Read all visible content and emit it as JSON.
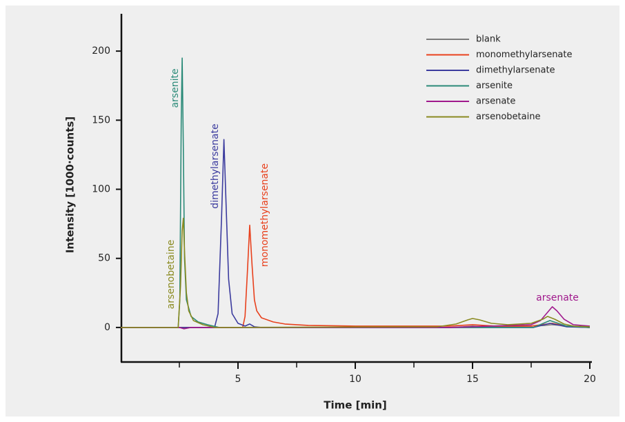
{
  "chart_data": {
    "type": "line",
    "xlabel": "Time [min]",
    "ylabel": "Intensity [1000·counts]",
    "xlim": [
      0,
      20
    ],
    "ylim": [
      -25,
      227
    ],
    "xticks": [
      5,
      10,
      15,
      20
    ],
    "xminorticks": [
      2.5,
      7.5,
      12.5,
      17.5
    ],
    "yticks": [
      0,
      50,
      100,
      150,
      200
    ],
    "legend": "upper right",
    "series": [
      {
        "name": "blank",
        "color": "#7a7a7a",
        "x": [
          0,
          14,
          14.6,
          15,
          15.4,
          16,
          17.5,
          18.1,
          18.4,
          18.8,
          19.3,
          20
        ],
        "values": [
          0,
          0,
          0.5,
          1,
          0.5,
          0.5,
          1,
          1.5,
          2,
          1.5,
          0.5,
          0
        ]
      },
      {
        "name": "monomethylarsenate",
        "color": "#e8401c",
        "x": [
          0,
          5.2,
          5.3,
          5.4,
          5.5,
          5.6,
          5.7,
          5.8,
          6,
          6.5,
          7,
          8,
          10,
          14,
          15,
          16,
          17.5,
          18.4,
          19,
          20
        ],
        "values": [
          0,
          0,
          8,
          40,
          74,
          45,
          20,
          12,
          7,
          4,
          2.5,
          1.5,
          1,
          1,
          2,
          1,
          1,
          3,
          1,
          0
        ]
      },
      {
        "name": "dimethylarsenate",
        "color": "#3b3b9e",
        "x": [
          0,
          4.0,
          4.15,
          4.3,
          4.4,
          4.5,
          4.6,
          4.75,
          5.0,
          5.3,
          5.5,
          5.7,
          6,
          17.6,
          18.3,
          19,
          20
        ],
        "values": [
          0,
          0,
          10,
          80,
          136,
          85,
          35,
          10,
          3,
          1,
          2.5,
          0.5,
          0,
          0,
          3,
          0.5,
          0
        ]
      },
      {
        "name": "arsenite",
        "color": "#2a8a78",
        "x": [
          0,
          2.45,
          2.52,
          2.58,
          2.62,
          2.67,
          2.72,
          2.8,
          3.0,
          3.3,
          3.7,
          4.2,
          17.6,
          18.3,
          19,
          20
        ],
        "values": [
          0,
          0,
          20,
          150,
          195,
          130,
          50,
          20,
          8,
          4,
          2,
          0,
          0,
          5,
          1,
          0
        ]
      },
      {
        "name": "arsenate",
        "color": "#a0188c",
        "x": [
          0,
          2.5,
          2.7,
          3.0,
          14,
          17.5,
          17.9,
          18.2,
          18.4,
          18.6,
          18.9,
          19.3,
          20
        ],
        "values": [
          0,
          0,
          -1,
          0,
          0,
          2,
          5,
          11,
          15,
          12,
          6,
          2,
          1
        ]
      },
      {
        "name": "arsenobetaine",
        "color": "#8a8a20",
        "x": [
          0,
          2.45,
          2.55,
          2.62,
          2.67,
          2.72,
          2.8,
          2.9,
          3.1,
          3.5,
          4.0,
          13.5,
          14.3,
          14.8,
          15.0,
          15.3,
          15.8,
          16.5,
          17.5,
          18.0,
          18.2,
          18.5,
          18.9,
          19.3,
          20
        ],
        "values": [
          0,
          0,
          30,
          70,
          79,
          55,
          25,
          12,
          5,
          2,
          0,
          0.5,
          2.5,
          5.5,
          6.5,
          5.5,
          3,
          2,
          3,
          6,
          8,
          6,
          2.5,
          1,
          0.5
        ]
      }
    ],
    "annotations": [
      {
        "text": "arsenite",
        "color": "#2a8a78"
      },
      {
        "text": "arsenobetaine",
        "color": "#8a8a20"
      },
      {
        "text": "dimethylarsenate",
        "color": "#3b3b9e"
      },
      {
        "text": "monomethylarsenate",
        "color": "#e8401c"
      },
      {
        "text": "arsenate",
        "color": "#a0188c"
      }
    ]
  }
}
